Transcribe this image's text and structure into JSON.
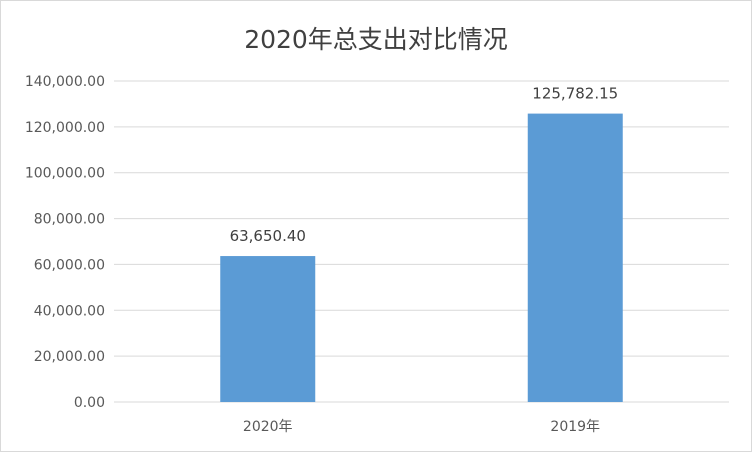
{
  "chart_data": {
    "type": "bar",
    "title": "2020年总支出对比情况",
    "categories": [
      "2020年",
      "2019年"
    ],
    "values": [
      63650.4,
      125782.15
    ],
    "data_labels": [
      "63,650.40",
      "125,782.15"
    ],
    "y_ticks": [
      "0.00",
      "20,000.00",
      "40,000.00",
      "60,000.00",
      "80,000.00",
      "100,000.00",
      "120,000.00",
      "140,000.00"
    ],
    "ylim": [
      0,
      140000
    ],
    "grid": true,
    "legend": "none",
    "colors": {
      "bar": "#5b9bd5",
      "grid": "#d9d9d9"
    }
  }
}
